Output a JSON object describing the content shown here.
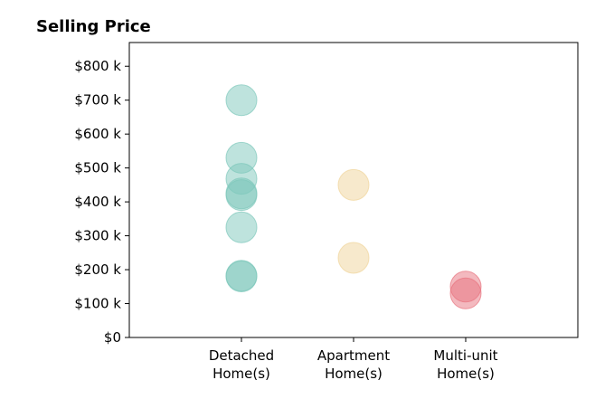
{
  "chart_data": {
    "type": "scatter",
    "title": "Selling Price",
    "xlabel": "",
    "ylabel": "",
    "categories": [
      [
        "Detached",
        "Home(s)"
      ],
      [
        "Apartment",
        "Home(s)"
      ],
      [
        "Multi-unit",
        "Home(s)"
      ]
    ],
    "y_ticks": [
      0,
      100,
      200,
      300,
      400,
      500,
      600,
      700,
      800
    ],
    "y_tick_labels": [
      "$0",
      "$100 k",
      "$200 k",
      "$300 k",
      "$400 k",
      "$500 k",
      "$600 k",
      "$700 k",
      "$800 k"
    ],
    "ylim": [
      0,
      870
    ],
    "y_unit": "thousands USD",
    "grid": false,
    "series": [
      {
        "category_index": 0,
        "color": "#7ec8bb",
        "values": [
          700,
          530,
          468,
          425,
          420,
          325,
          182,
          180
        ]
      },
      {
        "category_index": 1,
        "color": "#f0d49a",
        "values": [
          450,
          235
        ]
      },
      {
        "category_index": 2,
        "color": "#e8737f",
        "values": [
          150,
          130
        ]
      }
    ]
  }
}
